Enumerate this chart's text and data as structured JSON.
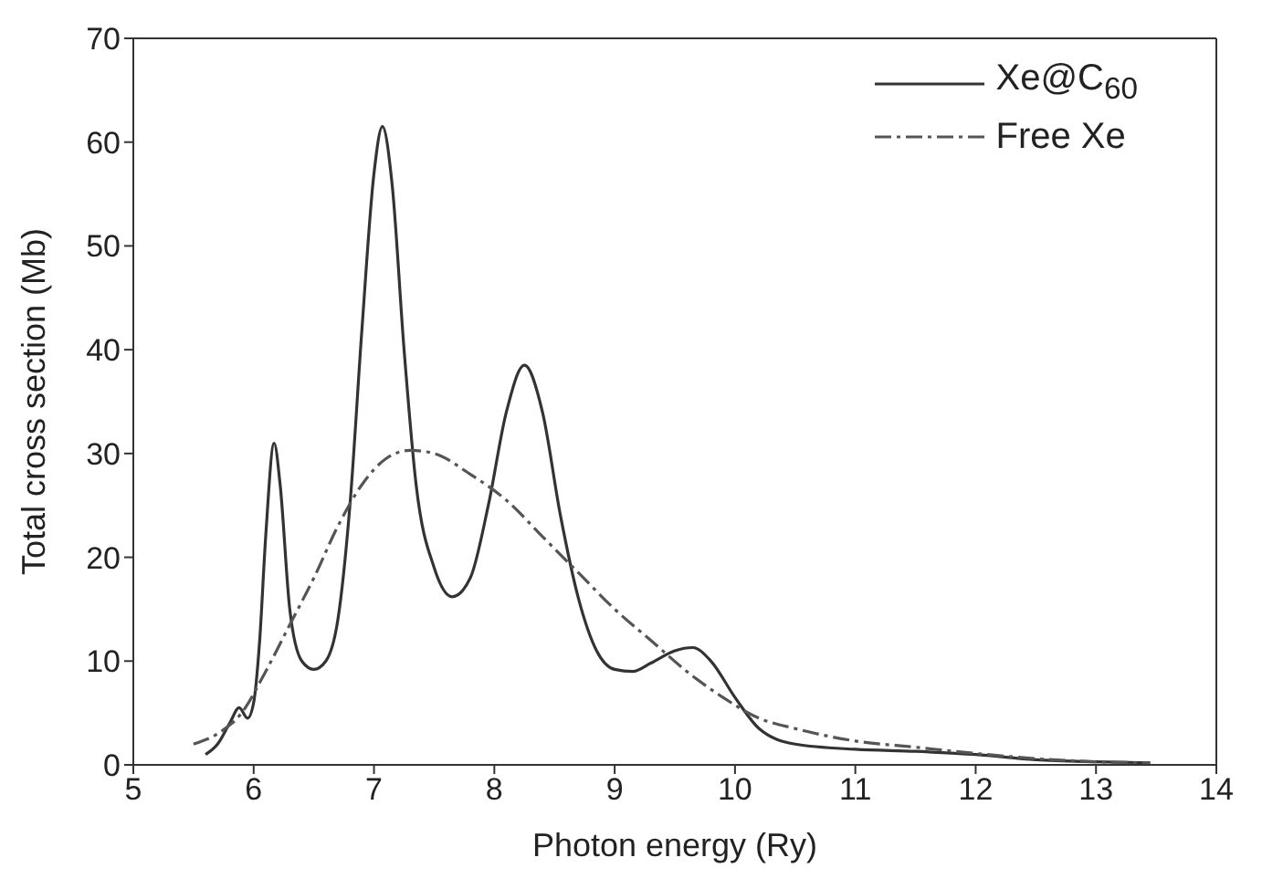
{
  "chart_data": {
    "type": "line",
    "xlabel": "Photon energy (Ry)",
    "ylabel": "Total cross section (Mb)",
    "xlim": [
      5,
      14
    ],
    "xticks": [
      5,
      6,
      7,
      8,
      9,
      10,
      11,
      12,
      13,
      14
    ],
    "ylim": [
      0,
      70
    ],
    "yticks": [
      0,
      10,
      20,
      30,
      40,
      50,
      60,
      70
    ],
    "legend": "top right",
    "marker": "none",
    "series": [
      {
        "name": "Xe@C$_{60}$",
        "color": "#333333",
        "line_style": "solid",
        "x": [
          5.6,
          5.7,
          5.8,
          5.88,
          5.95,
          6.0,
          6.05,
          6.1,
          6.17,
          6.22,
          6.3,
          6.4,
          6.5,
          6.6,
          6.7,
          6.8,
          6.9,
          7.0,
          7.07,
          7.15,
          7.25,
          7.35,
          7.5,
          7.65,
          7.8,
          7.95,
          8.1,
          8.25,
          8.4,
          8.55,
          8.7,
          8.85,
          9.0,
          9.15,
          9.3,
          9.5,
          9.65,
          9.8,
          10.0,
          10.2,
          10.5,
          11.0,
          11.5,
          12.0,
          12.5,
          13.0,
          13.45
        ],
        "values": [
          1,
          2,
          4,
          5.5,
          4.5,
          6,
          12,
          22,
          31,
          27,
          15,
          10,
          9.2,
          10,
          14,
          25,
          42,
          57,
          61.5,
          56,
          40,
          27,
          19,
          16.2,
          18,
          25,
          34,
          38.5,
          34,
          24,
          16,
          11,
          9.2,
          9,
          9.8,
          11,
          11.3,
          10,
          6.5,
          3.5,
          2,
          1.5,
          1.3,
          1,
          0.5,
          0.3,
          0.2
        ]
      },
      {
        "name": "Free Xe",
        "color": "#555555",
        "line_style": "dashed",
        "x": [
          5.5,
          5.7,
          5.9,
          6.1,
          6.3,
          6.5,
          6.7,
          6.9,
          7.1,
          7.3,
          7.5,
          7.8,
          8.1,
          8.4,
          8.7,
          9.0,
          9.3,
          9.6,
          9.9,
          10.2,
          10.5,
          11.0,
          11.5,
          12.0,
          12.5,
          13.0,
          13.45
        ],
        "values": [
          2,
          3,
          5,
          9,
          13.5,
          18,
          23,
          27,
          29.5,
          30.3,
          30,
          28,
          25.5,
          22,
          18.5,
          15,
          12,
          9,
          6.5,
          4.5,
          3.5,
          2.3,
          1.7,
          1.1,
          0.6,
          0.3,
          0.2
        ]
      }
    ]
  }
}
